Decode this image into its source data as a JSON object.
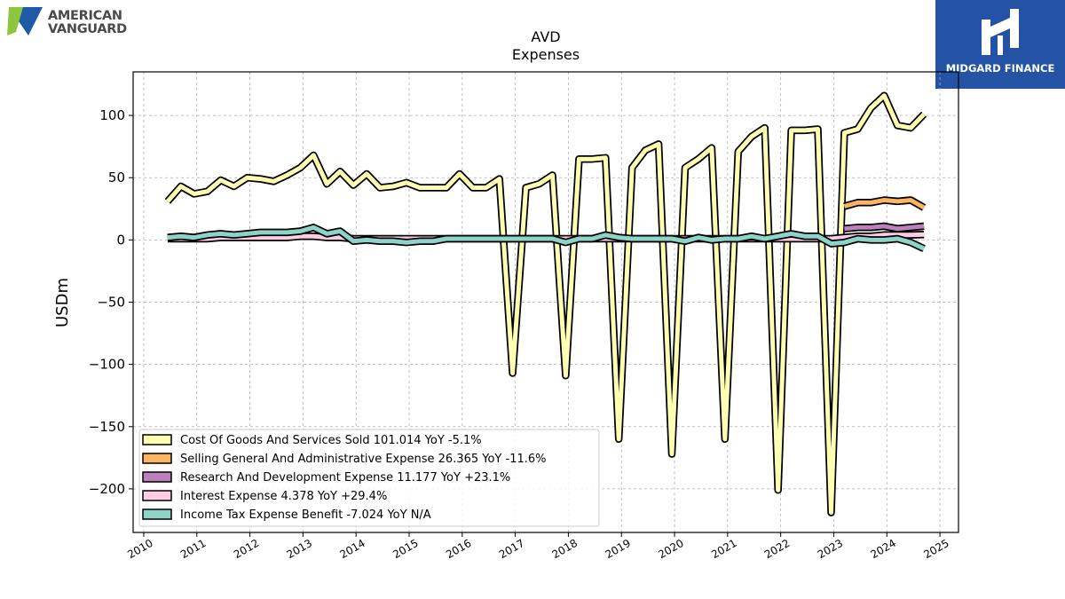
{
  "logos": {
    "left_brand_line1": "AMERICAN",
    "left_brand_line2": "VANGUARD",
    "right_brand": "MIDGARD FINANCE"
  },
  "chart_data": {
    "type": "line",
    "title": "AVD",
    "subtitle": "Expenses",
    "xlabel": "",
    "ylabel": "USDm",
    "xlim": [
      2009.8,
      2025.35
    ],
    "ylim": [
      -235,
      135
    ],
    "x_ticks": [
      2010,
      2011,
      2012,
      2013,
      2014,
      2015,
      2016,
      2017,
      2018,
      2019,
      2020,
      2021,
      2022,
      2023,
      2024,
      2025
    ],
    "y_ticks": [
      100,
      50,
      0,
      -50,
      -100,
      -150,
      -200
    ],
    "y_tick_labels": [
      "100",
      "50",
      "0",
      "−50",
      "−100",
      "−150",
      "−200"
    ],
    "grid": true,
    "legend_position": "lower-left",
    "series": [
      {
        "name": "Cost Of Goods And Services Sold  101.014 YoY -5.1%",
        "color": "#ffffb3",
        "x": [
          2010.45,
          2010.7,
          2010.95,
          2011.2,
          2011.45,
          2011.7,
          2011.95,
          2012.2,
          2012.45,
          2012.7,
          2012.95,
          2013.2,
          2013.45,
          2013.7,
          2013.95,
          2014.2,
          2014.45,
          2014.7,
          2014.95,
          2015.2,
          2015.45,
          2015.7,
          2015.95,
          2016.2,
          2016.45,
          2016.7,
          2016.95,
          2017.2,
          2017.45,
          2017.7,
          2017.95,
          2018.2,
          2018.45,
          2018.7,
          2018.95,
          2019.2,
          2019.45,
          2019.7,
          2019.95,
          2020.2,
          2020.45,
          2020.7,
          2020.95,
          2021.2,
          2021.45,
          2021.7,
          2021.95,
          2022.2,
          2022.45,
          2022.7,
          2022.95,
          2023.2,
          2023.45,
          2023.7,
          2023.95,
          2024.2,
          2024.45,
          2024.7
        ],
        "y": [
          31,
          43,
          37,
          39,
          48,
          43,
          50,
          49,
          47,
          52,
          58,
          68,
          45,
          55,
          44,
          53,
          42,
          43,
          46,
          42,
          42,
          42,
          53,
          42,
          42,
          49,
          -107,
          42,
          45,
          52,
          -109,
          65,
          65,
          66,
          -160,
          58,
          72,
          77,
          -172,
          58,
          65,
          74,
          -160,
          71,
          83,
          90,
          -201,
          88,
          88,
          89,
          -219,
          86,
          89,
          106,
          116,
          92,
          90,
          101
        ]
      },
      {
        "name": "Selling General And Administrative Expense  26.365 YoY -11.6%",
        "color": "#fdb462",
        "x": [
          2023.2,
          2023.45,
          2023.7,
          2023.95,
          2024.2,
          2024.45,
          2024.7
        ],
        "y": [
          27,
          30,
          30,
          32,
          31,
          32,
          26
        ]
      },
      {
        "name": "Research And Development Expense  11.177 YoY +23.1%",
        "color": "#bc80bd",
        "x": [
          2023.2,
          2023.45,
          2023.7,
          2023.95,
          2024.2,
          2024.45,
          2024.7
        ],
        "y": [
          9,
          10,
          10,
          11,
          9,
          10,
          11
        ]
      },
      {
        "name": "Interest Expense  4.378 YoY +29.4%",
        "color": "#fccde5",
        "x": [
          2010.45,
          2010.7,
          2010.95,
          2011.2,
          2011.45,
          2011.7,
          2011.95,
          2012.2,
          2012.45,
          2012.7,
          2012.95,
          2013.2,
          2013.45,
          2013.7,
          2013.95,
          2014.2,
          2014.45,
          2014.7,
          2014.95,
          2015.2,
          2015.45,
          2015.7,
          2015.95,
          2016.2,
          2016.45,
          2016.7,
          2016.95,
          2017.2,
          2017.45,
          2017.7,
          2017.95,
          2018.2,
          2018.45,
          2018.7,
          2018.95,
          2019.2,
          2019.45,
          2019.7,
          2019.95,
          2020.2,
          2020.45,
          2020.7,
          2020.95,
          2021.2,
          2021.45,
          2021.7,
          2021.95,
          2022.2,
          2022.45,
          2022.7,
          2022.95,
          2023.2,
          2023.45,
          2023.7,
          2023.95,
          2024.2,
          2024.45,
          2024.7
        ],
        "y": [
          1,
          1,
          1,
          1,
          2,
          2,
          2,
          2,
          2,
          2,
          3,
          3,
          2,
          2,
          1,
          1,
          1,
          1,
          1,
          1,
          1,
          1,
          1,
          1,
          1,
          1,
          1,
          1,
          1,
          1,
          1,
          1,
          1,
          1,
          1,
          1,
          1,
          1,
          1,
          1,
          1,
          1,
          1,
          1,
          1,
          1,
          1,
          1,
          1,
          1,
          1,
          2,
          3,
          3,
          4,
          4,
          4,
          4.4
        ]
      },
      {
        "name": "Income Tax Expense Benefit  -7.024 YoY N/A",
        "color": "#8dd3c7",
        "x": [
          2010.45,
          2010.7,
          2010.95,
          2011.2,
          2011.45,
          2011.7,
          2011.95,
          2012.2,
          2012.45,
          2012.7,
          2012.95,
          2013.2,
          2013.45,
          2013.7,
          2013.95,
          2014.2,
          2014.45,
          2014.7,
          2014.95,
          2015.2,
          2015.45,
          2015.7,
          2015.95,
          2016.2,
          2016.45,
          2016.7,
          2016.95,
          2017.2,
          2017.45,
          2017.7,
          2017.95,
          2018.2,
          2018.45,
          2018.7,
          2018.95,
          2019.2,
          2019.45,
          2019.7,
          2019.95,
          2020.2,
          2020.45,
          2020.7,
          2020.95,
          2021.2,
          2021.45,
          2021.7,
          2021.95,
          2022.2,
          2022.45,
          2022.7,
          2022.95,
          2023.2,
          2023.45,
          2023.7,
          2023.95,
          2024.2,
          2024.45,
          2024.7
        ],
        "y": [
          2,
          3,
          2,
          4,
          5,
          4,
          5,
          6,
          6,
          6,
          7,
          10,
          5,
          7,
          -1,
          0,
          -1,
          -1,
          -2,
          -1,
          -1,
          1,
          1,
          1,
          1,
          1,
          1,
          1,
          1,
          1,
          -2,
          1,
          1,
          4,
          2,
          1,
          1,
          1,
          1,
          -1,
          2,
          0,
          1,
          1,
          3,
          1,
          3,
          5,
          3,
          3,
          -3,
          -2,
          1,
          0,
          0,
          1,
          -2,
          -7
        ]
      }
    ]
  }
}
